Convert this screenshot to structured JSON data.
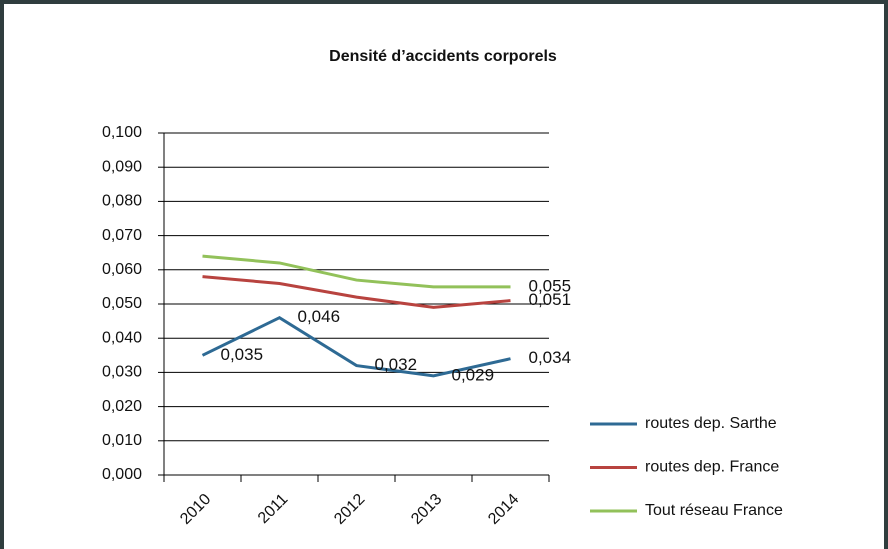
{
  "chart_data": {
    "type": "line",
    "title": "Densité d’accidents corporels",
    "categories": [
      "2010",
      "2011",
      "2012",
      "2013",
      "2014"
    ],
    "ylim": [
      0,
      0.1
    ],
    "yticks": [
      {
        "value": 0,
        "label": "0,000"
      },
      {
        "value": 0.01,
        "label": "0,010"
      },
      {
        "value": 0.02,
        "label": "0,020"
      },
      {
        "value": 0.03,
        "label": "0,030"
      },
      {
        "value": 0.04,
        "label": "0,040"
      },
      {
        "value": 0.05,
        "label": "0,050"
      },
      {
        "value": 0.06,
        "label": "0,060"
      },
      {
        "value": 0.07,
        "label": "0,070"
      },
      {
        "value": 0.08,
        "label": "0,080"
      },
      {
        "value": 0.09,
        "label": "0,090"
      },
      {
        "value": 0.1,
        "label": "0,100"
      }
    ],
    "grid": true,
    "legend": "right",
    "series": [
      {
        "name": "routes dep. Sarthe",
        "color": "#2e6a94",
        "values": [
          0.035,
          0.046,
          0.032,
          0.029,
          0.034
        ],
        "value_labels": [
          "0,035",
          "0,046",
          "0,032",
          "0,029",
          "0,034"
        ]
      },
      {
        "name": "routes dep. France",
        "color": "#b8433f",
        "values": [
          0.058,
          0.056,
          0.052,
          0.049,
          0.051
        ],
        "value_labels": [
          null,
          null,
          null,
          null,
          "0,051"
        ]
      },
      {
        "name": "Tout réseau France",
        "color": "#92c15a",
        "values": [
          0.064,
          0.062,
          0.057,
          0.055,
          0.055
        ],
        "value_labels": [
          null,
          null,
          null,
          null,
          "0,055"
        ]
      }
    ]
  }
}
